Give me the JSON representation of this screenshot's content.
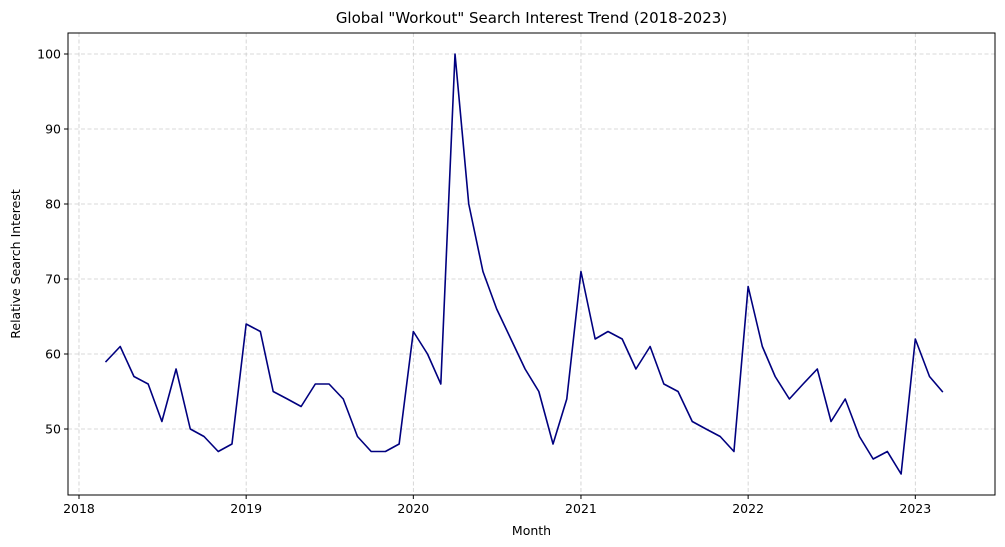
{
  "chart_data": {
    "type": "line",
    "title": "Global \"Workout\" Search Interest Trend (2018-2023)",
    "xlabel": "Month",
    "ylabel": "Relative Search Interest",
    "grid": true,
    "grid_style": "dashed",
    "legend": "none",
    "line_color": "#00007f",
    "xlim": [
      "2017-12-08",
      "2023-06-24"
    ],
    "ylim": [
      41.2,
      102.8
    ],
    "x_ticks": [
      {
        "date": "2018-01-01",
        "label": "2018"
      },
      {
        "date": "2019-01-01",
        "label": "2019"
      },
      {
        "date": "2020-01-01",
        "label": "2020"
      },
      {
        "date": "2021-01-01",
        "label": "2021"
      },
      {
        "date": "2022-01-01",
        "label": "2022"
      },
      {
        "date": "2023-01-01",
        "label": "2023"
      }
    ],
    "y_ticks": [
      {
        "value": 50,
        "label": "50"
      },
      {
        "value": 60,
        "label": "60"
      },
      {
        "value": 70,
        "label": "70"
      },
      {
        "value": 80,
        "label": "80"
      },
      {
        "value": 90,
        "label": "90"
      },
      {
        "value": 100,
        "label": "100"
      }
    ],
    "series": [
      {
        "x": [
          "2018-03-01",
          "2018-04-01",
          "2018-05-01",
          "2018-06-01",
          "2018-07-01",
          "2018-08-01",
          "2018-09-01",
          "2018-10-01",
          "2018-11-01",
          "2018-12-01",
          "2019-01-01",
          "2019-02-01",
          "2019-03-01",
          "2019-04-01",
          "2019-05-01",
          "2019-06-01",
          "2019-07-01",
          "2019-08-01",
          "2019-09-01",
          "2019-10-01",
          "2019-11-01",
          "2019-12-01",
          "2020-01-01",
          "2020-02-01",
          "2020-03-01",
          "2020-04-01",
          "2020-05-01",
          "2020-06-01",
          "2020-07-01",
          "2020-08-01",
          "2020-09-01",
          "2020-10-01",
          "2020-11-01",
          "2020-12-01",
          "2021-01-01",
          "2021-02-01",
          "2021-03-01",
          "2021-04-01",
          "2021-05-01",
          "2021-06-01",
          "2021-07-01",
          "2021-08-01",
          "2021-09-01",
          "2021-10-01",
          "2021-11-01",
          "2021-12-01",
          "2022-01-01",
          "2022-02-01",
          "2022-03-01",
          "2022-04-01",
          "2022-05-01",
          "2022-06-01",
          "2022-07-01",
          "2022-08-01",
          "2022-09-01",
          "2022-10-01",
          "2022-11-01",
          "2022-12-01",
          "2023-01-01",
          "2023-02-01",
          "2023-03-01"
        ],
        "values": [
          59,
          61,
          57,
          56,
          51,
          58,
          50,
          49,
          47,
          48,
          64,
          63,
          55,
          54,
          53,
          56,
          56,
          54,
          49,
          47,
          47,
          48,
          63,
          60,
          56,
          100,
          80,
          71,
          66,
          62,
          58,
          55,
          48,
          54,
          71,
          62,
          63,
          62,
          58,
          61,
          56,
          55,
          51,
          50,
          49,
          47,
          69,
          61,
          57,
          54,
          56,
          58,
          51,
          54,
          49,
          46,
          47,
          44,
          62,
          57,
          55
        ]
      }
    ]
  }
}
